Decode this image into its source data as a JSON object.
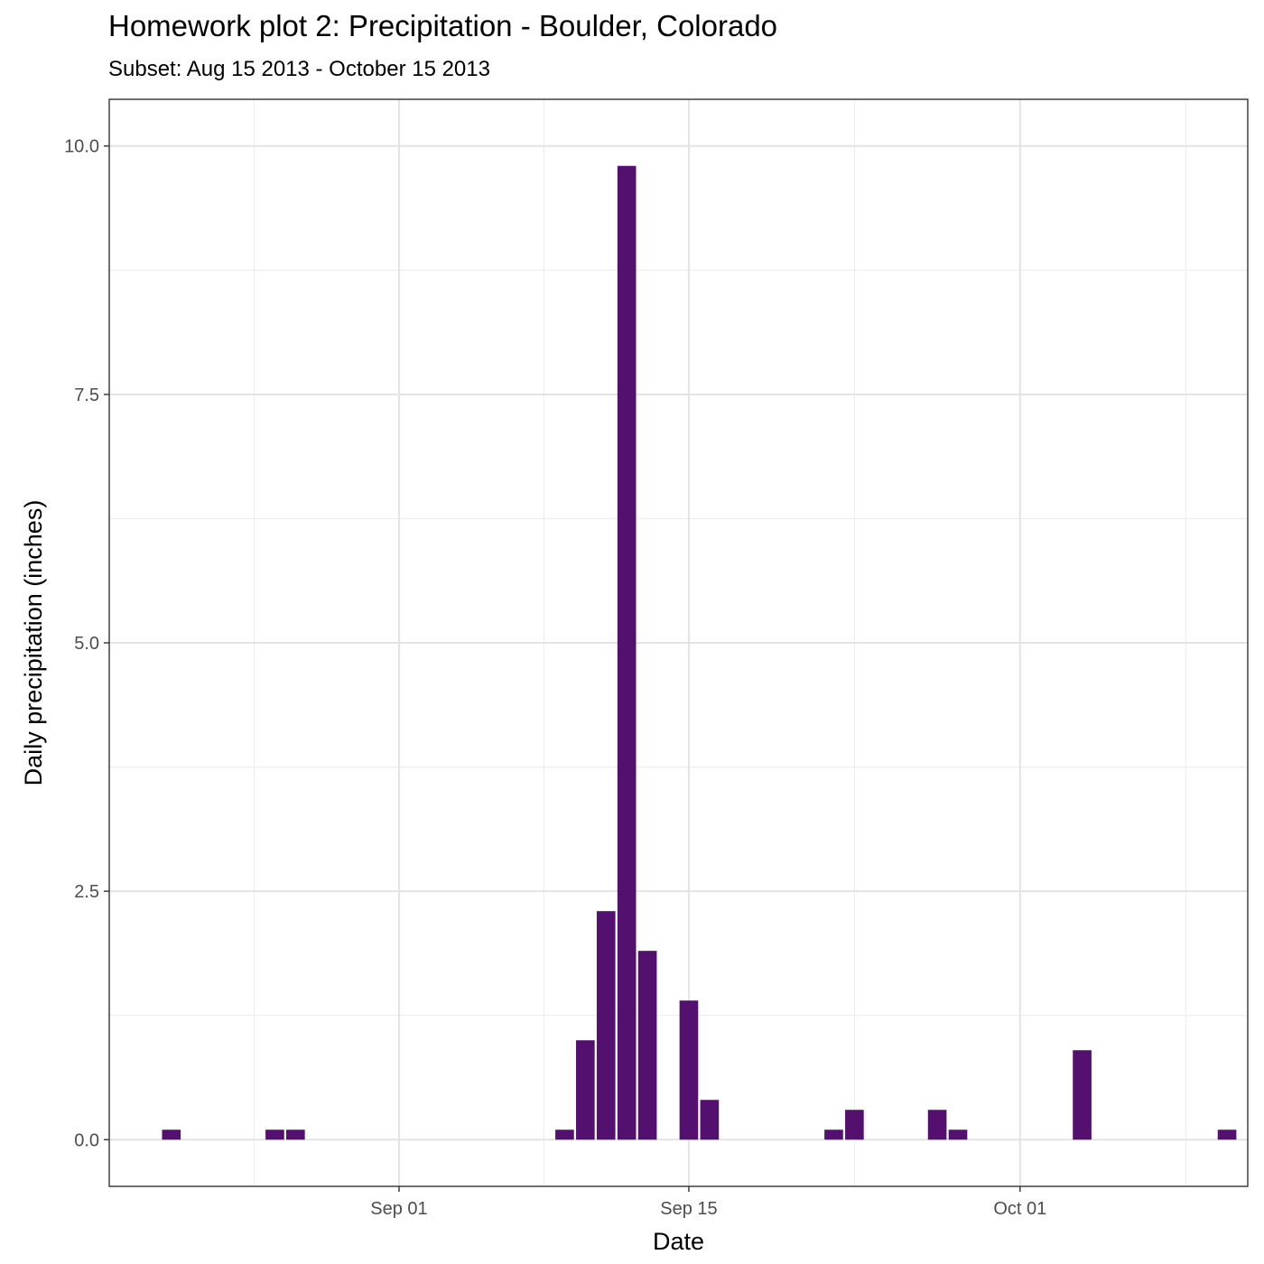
{
  "chart_data": {
    "type": "bar",
    "title": "Homework plot 2: Precipitation - Boulder, Colorado",
    "subtitle": "Subset: Aug 15 2013 - October 15 2013",
    "xlabel": "Date",
    "ylabel": "Daily precipitation (inches)",
    "x_ticks": [
      {
        "date": "2013-09-01",
        "label": "Sep 01"
      },
      {
        "date": "2013-09-15",
        "label": "Sep 15"
      },
      {
        "date": "2013-10-01",
        "label": "Oct 01"
      }
    ],
    "y_ticks": [
      {
        "value": 0,
        "label": "0.0"
      },
      {
        "value": 2.5,
        "label": "2.5"
      },
      {
        "value": 5,
        "label": "5.0"
      },
      {
        "value": 7.5,
        "label": "7.5"
      },
      {
        "value": 10,
        "label": "10.0"
      }
    ],
    "xlim": [
      "2013-08-18",
      "2013-10-12"
    ],
    "ylim": [
      -0.47,
      10.47
    ],
    "grid": true,
    "bar_color": "#54106f",
    "dates": [
      "2013-08-21",
      "2013-08-26",
      "2013-08-27",
      "2013-09-09",
      "2013-09-10",
      "2013-09-11",
      "2013-09-12",
      "2013-09-13",
      "2013-09-15",
      "2013-09-16",
      "2013-09-22",
      "2013-09-23",
      "2013-09-27",
      "2013-09-28",
      "2013-10-04",
      "2013-10-11"
    ],
    "values": [
      0.1,
      0.1,
      0.1,
      0.1,
      1.0,
      2.3,
      9.8,
      1.9,
      1.4,
      0.4,
      0.1,
      0.3,
      0.3,
      0.1,
      0.9,
      0.1
    ]
  }
}
